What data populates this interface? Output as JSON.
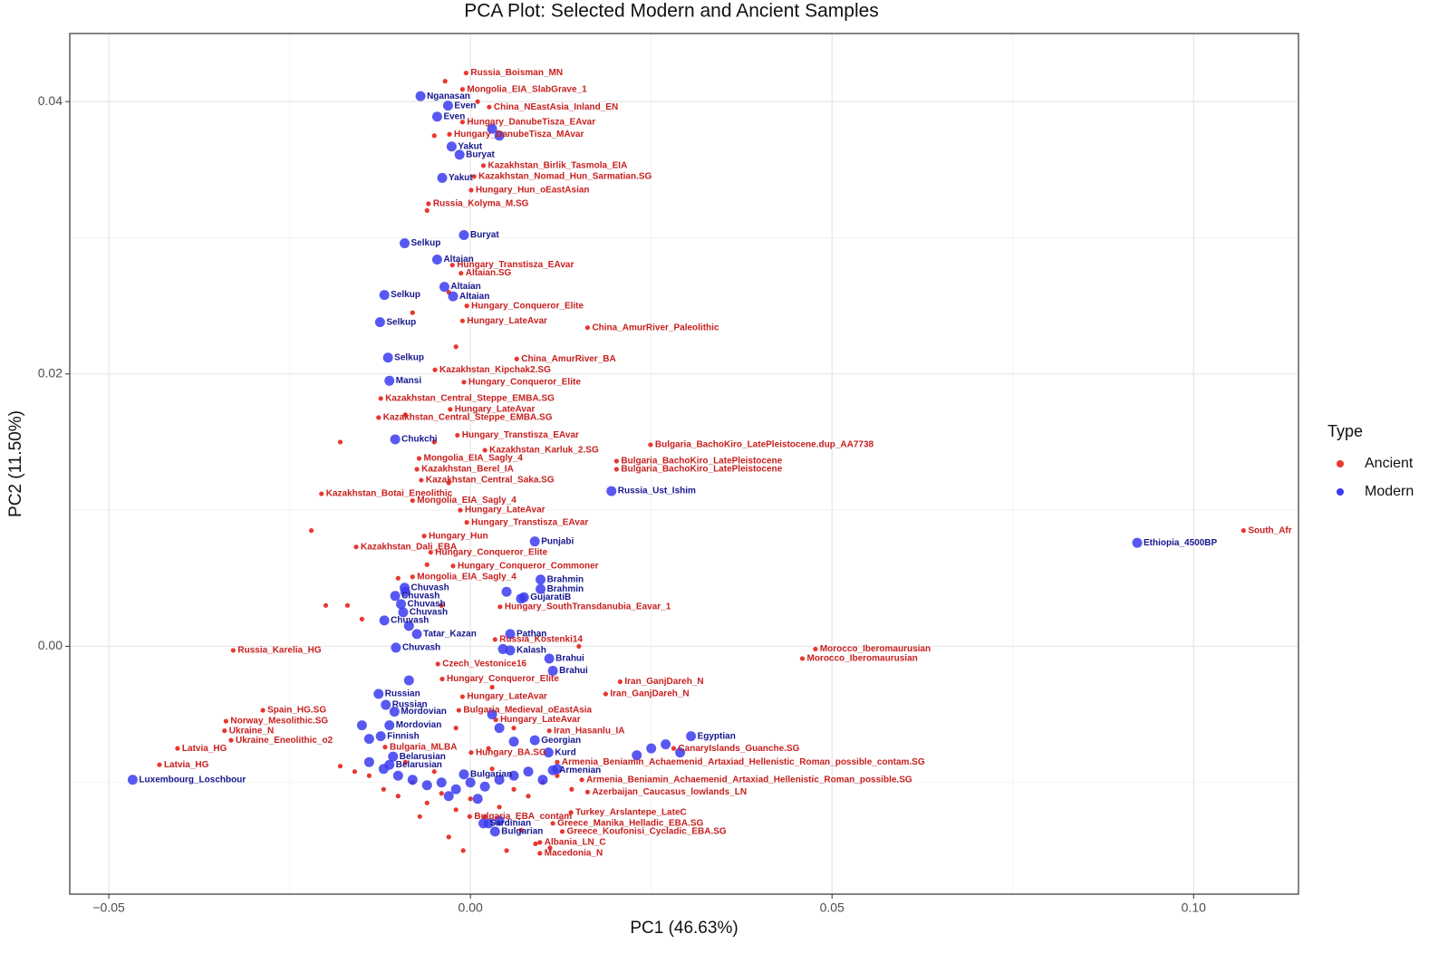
{
  "chart_data": {
    "type": "scatter",
    "title": "PCA Plot: Selected Modern and Ancient Samples",
    "x_label": "PC1 (46.63%)",
    "y_label": "PC2 (11.50%)",
    "legend_title": "Type",
    "legend_position": "right",
    "grid": true,
    "xlim": [
      -0.0554,
      0.1145
    ],
    "ylim": [
      -0.0182,
      0.045
    ],
    "xticks": [
      {
        "value": -0.05,
        "label": "−0.05"
      },
      {
        "value": 0,
        "label": "0.00"
      },
      0.05,
      {
        "value": 0.1,
        "label": "0.10"
      }
    ],
    "yticks": [
      {
        "value": 0,
        "label": "0.00"
      },
      0.02,
      0.04
    ],
    "x_minor_grid": [
      -0.025,
      0.025,
      0.075
    ],
    "y_minor_grid": [
      -0.01,
      0.01,
      0.03
    ],
    "series": [
      {
        "name": "Ancient",
        "color": "#e8382f",
        "label_color": "#c81e1e",
        "x": [
          -0.0006,
          -0.0011,
          0.0026,
          -0.0011,
          -0.0029,
          0.0018,
          0.0005,
          0.0001,
          -0.0058,
          -0.0025,
          -0.0013,
          -0.0005,
          -0.0011,
          0.0162,
          0.0064,
          -0.0049,
          -0.0009,
          -0.0124,
          -0.0028,
          -0.0127,
          -0.0018,
          0.0249,
          0.002,
          -0.0071,
          0.0202,
          -0.0074,
          0.0202,
          -0.0068,
          -0.0206,
          -0.008,
          -0.0014,
          -0.0005,
          -0.0064,
          -0.0158,
          -0.0055,
          -0.0024,
          -0.008,
          0.0041,
          0.0034,
          -0.0328,
          0.0477,
          0.0459,
          -0.0045,
          -0.0039,
          0.0207,
          0.0187,
          -0.0011,
          -0.0016,
          -0.0287,
          0.0035,
          -0.0338,
          0.0109,
          -0.034,
          -0.0331,
          -0.0405,
          0.0281,
          -0.0118,
          0.0001,
          0.012,
          -0.043,
          0.0154,
          0.0162,
          0.0139,
          -0.0001,
          0.0114,
          0.0127,
          0.0096,
          0.0096,
          0.1069,
          -0.014,
          -0.012,
          -0.01,
          -0.008,
          -0.006,
          -0.004,
          -0.002,
          0.0,
          0.002,
          0.004,
          0.006,
          0.008,
          0.01,
          0.012,
          0.014,
          -0.009,
          -0.005,
          0.003,
          0.007,
          0.009,
          -0.003,
          -0.001,
          0.005,
          0.011,
          -0.016,
          -0.018,
          -0.007,
          0.0025,
          0.006,
          -0.002,
          -0.004,
          -0.006,
          -0.01,
          -0.015,
          -0.017,
          -0.02,
          -0.003,
          -0.005,
          -0.009,
          -0.002,
          -0.003,
          -0.006,
          -0.0035,
          -0.005,
          0.001,
          -0.022,
          -0.018,
          -0.008,
          0.015,
          0.003
        ],
        "y": [
          0.0421,
          0.0409,
          0.0396,
          0.0385,
          0.0376,
          0.0353,
          0.0345,
          0.0335,
          0.0325,
          0.028,
          0.0274,
          0.025,
          0.0239,
          0.0234,
          0.0211,
          0.0203,
          0.0194,
          0.0182,
          0.0174,
          0.0168,
          0.0155,
          0.0148,
          0.0144,
          0.0138,
          0.0136,
          0.013,
          0.013,
          0.0122,
          0.0112,
          0.0107,
          0.01,
          0.0091,
          0.0081,
          0.0073,
          0.0069,
          0.0059,
          0.0051,
          0.0029,
          0.0005,
          -0.0003,
          -0.0002,
          -0.0009,
          -0.0013,
          -0.0024,
          -0.0026,
          -0.0035,
          -0.0037,
          -0.0047,
          -0.0047,
          -0.0054,
          -0.0055,
          -0.0062,
          -0.0062,
          -0.0069,
          -0.0075,
          -0.0075,
          -0.0074,
          -0.0078,
          -0.0085,
          -0.0087,
          -0.0098,
          -0.0107,
          -0.0122,
          -0.0125,
          -0.013,
          -0.0136,
          -0.0144,
          -0.0152,
          0.0085,
          -0.0095,
          -0.0105,
          -0.011,
          -0.01,
          -0.0115,
          -0.0108,
          -0.012,
          -0.0112,
          -0.0125,
          -0.0118,
          -0.0105,
          -0.011,
          -0.01,
          -0.0095,
          -0.0105,
          -0.0085,
          -0.0092,
          -0.009,
          -0.0135,
          -0.0145,
          -0.014,
          -0.015,
          -0.015,
          -0.0148,
          -0.0092,
          -0.0088,
          -0.0125,
          -0.0075,
          -0.006,
          -0.006,
          0.003,
          0.006,
          0.005,
          0.002,
          0.003,
          0.003,
          0.012,
          0.015,
          0.017,
          0.022,
          0.026,
          0.032,
          0.0415,
          0.0375,
          0.04,
          0.0085,
          0.015,
          0.0245,
          0.0,
          -0.003
        ],
        "labels": [
          "Russia_Boisman_MN",
          "Mongolia_EIA_SlabGrave_1",
          "China_NEastAsia_Inland_EN",
          "Hungary_DanubeTisza_EAvar",
          "Hungary_DanubeTisza_MAvar",
          "Kazakhstan_Birlik_Tasmola_EIA",
          "Kazakhstan_Nomad_Hun_Sarmatian.SG",
          "Hungary_Hun_oEastAsian",
          "Russia_Kolyma_M.SG",
          "Hungary_Transtisza_EAvar",
          "Altaian.SG",
          "Hungary_Conqueror_Elite",
          "Hungary_LateAvar",
          "China_AmurRiver_Paleolithic",
          "China_AmurRiver_BA",
          "Kazakhstan_Kipchak2.SG",
          "Hungary_Conqueror_Elite",
          "Kazakhstan_Central_Steppe_EMBA.SG",
          "Hungary_LateAvar",
          "Kazakhstan_Central_Steppe_EMBA.SG",
          "Hungary_Transtisza_EAvar",
          "Bulgaria_BachoKiro_LatePleistocene.dup_AA7738",
          "Kazakhstan_Karluk_2.SG",
          "Mongolia_EIA_Sagly_4",
          "Bulgaria_BachoKiro_LatePleistocene",
          "Kazakhstan_Berel_IA",
          "Bulgaria_BachoKiro_LatePleistocene",
          "Kazakhstan_Central_Saka.SG",
          "Kazakhstan_Botai_Eneolithic",
          "Mongolia_EIA_Sagly_4",
          "Hungary_LateAvar",
          "Hungary_Transtisza_EAvar",
          "Hungary_Hun",
          "Kazakhstan_Dali_EBA",
          "Hungary_Conqueror_Elite",
          "Hungary_Conqueror_Commoner",
          "Mongolia_EIA_Sagly_4",
          "Hungary_SouthTransdanubia_Eavar_1",
          "Russia_Kostenki14",
          "Russia_Karelia_HG",
          "Morocco_Iberomaurusian",
          "Morocco_Iberomaurusian",
          "Czech_Vestonice16",
          "Hungary_Conqueror_Elite",
          "Iran_GanjDareh_N",
          "Iran_GanjDareh_N",
          "Hungary_LateAvar",
          "Bulgaria_Medieval_oEastAsia",
          "Spain_HG.SG",
          "Hungary_LateAvar",
          "Norway_Mesolithic.SG",
          "Iran_Hasanlu_IA",
          "Ukraine_N",
          "Ukraine_Eneolithic_o2",
          "Latvia_HG",
          "CanaryIslands_Guanche.SG",
          "Bulgaria_MLBA",
          "Hungary_BA.SG",
          "Armenia_Beniamin_Achaemenid_Artaxiad_Hellenistic_Roman_possible_contam.SG",
          "Latvia_HG",
          "Armenia_Beniamin_Achaemenid_Artaxiad_Hellenistic_Roman_possible.SG",
          "Azerbaijan_Caucasus_lowlands_LN",
          "Turkey_Arslantepe_LateC",
          "Bulgaria_EBA_contam",
          "Greece_Manika_Helladic_EBA.SG",
          "Greece_Koufonisi_Cycladic_EBA.SG",
          "Albania_LN_C",
          "Macedonia_N",
          "South_Afr",
          null,
          null,
          null,
          null,
          null,
          null,
          null,
          null,
          null,
          null,
          null,
          null,
          null,
          null,
          null,
          null,
          null,
          null,
          null,
          null,
          null,
          null,
          null,
          null,
          null,
          null,
          null,
          null,
          null,
          null,
          null,
          null,
          null,
          null,
          null,
          null,
          null,
          null,
          null,
          null,
          null,
          null,
          null,
          null,
          null,
          null,
          null,
          null,
          null,
          null
        ]
      },
      {
        "name": "Modern",
        "color": "#3b3bf0",
        "label_color": "#16168f",
        "x": [
          -0.0069,
          -0.0031,
          -0.0046,
          -0.0026,
          -0.0015,
          -0.0039,
          -0.0009,
          -0.0091,
          -0.0046,
          -0.0036,
          -0.0024,
          -0.0119,
          -0.0125,
          -0.0114,
          -0.0112,
          -0.0104,
          0.0195,
          0.0922,
          0.0089,
          0.0097,
          0.0097,
          0.0074,
          -0.0091,
          -0.0104,
          -0.0096,
          -0.0093,
          -0.0119,
          -0.0074,
          0.0055,
          -0.0103,
          0.0055,
          0.0109,
          0.0114,
          -0.0127,
          -0.0117,
          -0.0105,
          -0.0112,
          -0.0124,
          0.0305,
          0.0089,
          0.0108,
          -0.0107,
          -0.0112,
          -0.0467,
          0.0114,
          -0.0009,
          0.0018,
          0.0034,
          -0.014,
          -0.012,
          -0.01,
          -0.008,
          -0.006,
          -0.004,
          -0.002,
          0.0,
          0.002,
          0.004,
          0.006,
          0.008,
          0.01,
          0.012,
          -0.003,
          0.001,
          -0.015,
          -0.014,
          0.003,
          0.004,
          0.006,
          0.025,
          0.027,
          0.029,
          0.023,
          0.005,
          0.007,
          0.0045,
          -0.0085,
          -0.009,
          0.003,
          0.004,
          -0.0085,
          0.0025,
          0.004
        ],
        "y": [
          0.0404,
          0.0397,
          0.0389,
          0.0367,
          0.0361,
          0.0344,
          0.0302,
          0.0296,
          0.0284,
          0.0264,
          0.0257,
          0.0258,
          0.0238,
          0.0212,
          0.0195,
          0.0152,
          0.0114,
          0.0076,
          0.0077,
          0.0049,
          0.0042,
          0.0036,
          0.0043,
          0.0037,
          0.0031,
          0.0025,
          0.0019,
          0.0009,
          0.0009,
          -0.0001,
          -0.0003,
          -0.0009,
          -0.0018,
          -0.0035,
          -0.0043,
          -0.0048,
          -0.0058,
          -0.0066,
          -0.0066,
          -0.0069,
          -0.0078,
          -0.0081,
          -0.0087,
          -0.0098,
          -0.0091,
          -0.0094,
          -0.013,
          -0.0136,
          -0.0085,
          -0.009,
          -0.0095,
          -0.0098,
          -0.0102,
          -0.01,
          -0.0105,
          -0.01,
          -0.0103,
          -0.0098,
          -0.0095,
          -0.0092,
          -0.0098,
          -0.009,
          -0.011,
          -0.0112,
          -0.0058,
          -0.0068,
          -0.005,
          -0.006,
          -0.007,
          -0.0075,
          -0.0072,
          -0.0078,
          -0.008,
          0.004,
          0.0035,
          -0.0002,
          -0.0025,
          0.004,
          0.038,
          0.0375,
          0.0015,
          -0.013,
          -0.0128
        ],
        "labels": [
          "Nganasan",
          "Even",
          "Even",
          "Yakut",
          "Buryat",
          "Yakut",
          "Buryat",
          "Selkup",
          "Altaian",
          "Altaian",
          "Altaian",
          "Selkup",
          "Selkup",
          "Selkup",
          "Mansi",
          "Chukchi",
          "Russia_Ust_Ishim",
          "Ethiopia_4500BP",
          "Punjabi",
          "Brahmin",
          "Brahmin",
          "GujaratiB",
          "Chuvash",
          "Chuvash",
          "Chuvash",
          "Chuvash",
          "Chuvash",
          "Tatar_Kazan",
          "Pathan",
          "Chuvash",
          "Kalash",
          "Brahui",
          "Brahui",
          "Russian",
          "Russian",
          "Mordovian",
          "Mordovian",
          "Finnish",
          "Egyptian",
          "Georgian",
          "Kurd",
          "Belarusian",
          "Belarusian",
          "Luxembourg_Loschbour",
          "Armenian",
          "Bulgarian",
          "Sardinian",
          "Bulgarian",
          null,
          null,
          null,
          null,
          null,
          null,
          null,
          null,
          null,
          null,
          null,
          null,
          null,
          null,
          null,
          null,
          null,
          null,
          null,
          null,
          null,
          null,
          null,
          null,
          null,
          null,
          null,
          null,
          null,
          null,
          null,
          null,
          null,
          null,
          null
        ]
      }
    ]
  }
}
